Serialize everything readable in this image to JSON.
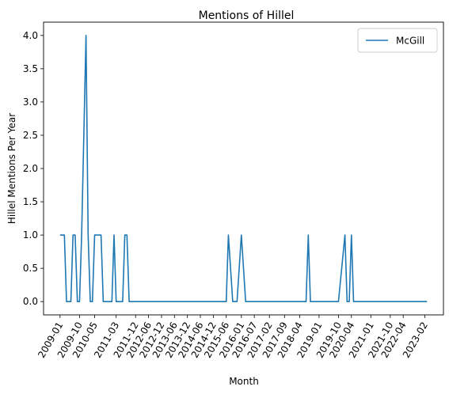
{
  "chart_data": {
    "type": "line",
    "title": "Mentions of Hillel",
    "xlabel": "Month",
    "ylabel": "Hillel Mentions Per Year",
    "ylim": [
      -0.2,
      4.2
    ],
    "yticks": [
      0.0,
      0.5,
      1.0,
      1.5,
      2.0,
      2.5,
      3.0,
      3.5,
      4.0
    ],
    "ytick_labels": [
      "0.0",
      "0.5",
      "1.0",
      "1.5",
      "2.0",
      "2.5",
      "3.0",
      "3.5",
      "4.0"
    ],
    "x_tick_labels": [
      "2009-01",
      "2009-10",
      "2010-05",
      "2011-03",
      "2011-12",
      "2012-06",
      "2012-12",
      "2013-06",
      "2013-12",
      "2014-06",
      "2014-12",
      "2015-06",
      "2016-01",
      "2016-07",
      "2017-02",
      "2017-09",
      "2018-04",
      "2019-01",
      "2019-10",
      "2020-04",
      "2021-01",
      "2021-10",
      "2022-04",
      "2023-02"
    ],
    "legend_position": "top-right",
    "grid": false,
    "series": [
      {
        "name": "McGill",
        "color": "#1f77b4",
        "x": [
          "2009-01",
          "2009-03",
          "2009-04",
          "2009-06",
          "2009-07",
          "2009-08",
          "2009-09",
          "2009-10",
          "2009-11",
          "2010-01",
          "2010-02",
          "2010-03",
          "2010-04",
          "2010-05",
          "2010-06",
          "2010-07",
          "2010-08",
          "2010-09",
          "2010-10",
          "2010-11",
          "2011-01",
          "2011-02",
          "2011-03",
          "2011-04",
          "2011-06",
          "2011-07",
          "2011-08",
          "2011-09",
          "2011-11",
          "2011-12",
          "2012-01",
          "2012-03",
          "2012-06",
          "2012-12",
          "2013-06",
          "2013-12",
          "2014-06",
          "2014-12",
          "2015-06",
          "2015-07",
          "2015-09",
          "2015-10",
          "2015-11",
          "2016-01",
          "2016-03",
          "2016-07",
          "2017-02",
          "2017-09",
          "2018-04",
          "2018-07",
          "2018-08",
          "2018-09",
          "2019-01",
          "2019-10",
          "2020-01",
          "2020-02",
          "2020-03",
          "2020-04",
          "2020-05",
          "2020-06",
          "2021-01",
          "2021-10",
          "2022-04",
          "2023-02",
          "2023-03"
        ],
        "y": [
          1,
          1,
          0,
          0,
          1,
          1,
          0,
          0,
          1,
          4,
          1,
          0,
          0,
          1,
          1,
          1,
          1,
          0,
          0,
          0,
          0,
          1,
          0,
          0,
          0,
          1,
          1,
          0,
          0,
          0,
          0,
          0,
          0,
          0,
          0,
          0,
          0,
          0,
          0,
          1,
          0,
          0,
          0,
          1,
          0,
          0,
          0,
          0,
          0,
          0,
          1,
          0,
          0,
          0,
          1,
          0,
          0,
          1,
          0,
          0,
          0,
          0,
          0,
          0,
          0
        ]
      }
    ]
  }
}
